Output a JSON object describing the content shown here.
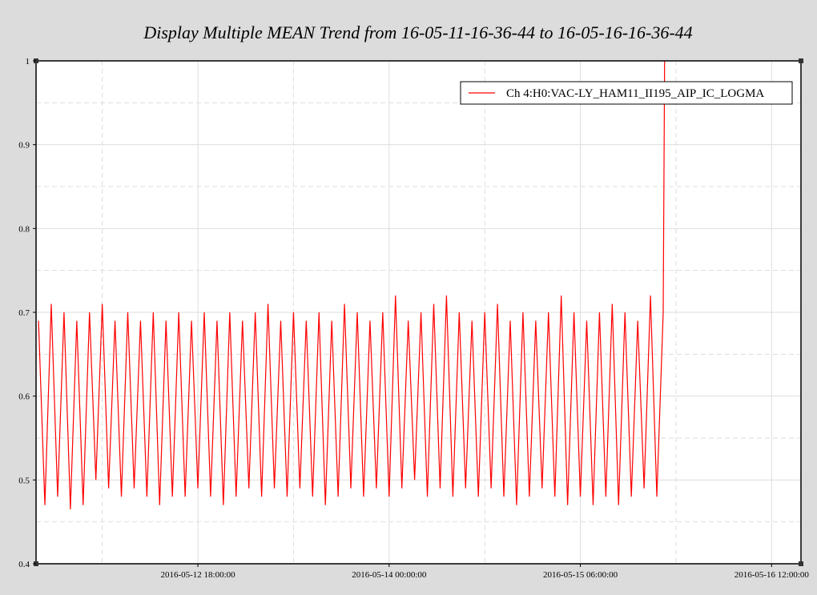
{
  "chart_data": {
    "type": "line",
    "title": "Display Multiple MEAN Trend from 16-05-11-16-36-44 to 16-05-16-16-36-44",
    "xlim": [
      "2016-05-11 16:36:44",
      "2016-05-16 16:36:44"
    ],
    "xticks": [
      "2016-05-12 18:00:00",
      "2016-05-14 00:00:00",
      "2016-05-15 06:00:00",
      "2016-05-16 12:00:00"
    ],
    "ylim": [
      0.4,
      1
    ],
    "yticks": [
      0.4,
      0.5,
      0.6,
      0.7,
      0.8,
      0.9,
      1
    ],
    "grid": true,
    "legend": "upper right",
    "series": [
      {
        "name": "Ch 4:H0:VAC-LY_HAM11_II195_AIP_IC_LOGMA",
        "color": "#ff0000",
        "x": [
          "2016-05-11 17:00:00",
          "2016-05-11 18:00:00",
          "2016-05-11 19:00:00",
          "2016-05-11 20:00:00",
          "2016-05-11 21:00:00",
          "2016-05-11 22:00:00",
          "2016-05-11 23:00:00",
          "2016-05-12 00:00:00",
          "2016-05-12 01:00:00",
          "2016-05-12 02:00:00",
          "2016-05-12 03:00:00",
          "2016-05-12 04:00:00",
          "2016-05-12 05:00:00",
          "2016-05-12 06:00:00",
          "2016-05-12 07:00:00",
          "2016-05-12 08:00:00",
          "2016-05-12 09:00:00",
          "2016-05-12 10:00:00",
          "2016-05-12 11:00:00",
          "2016-05-12 12:00:00",
          "2016-05-12 13:00:00",
          "2016-05-12 14:00:00",
          "2016-05-12 15:00:00",
          "2016-05-12 16:00:00",
          "2016-05-12 17:00:00",
          "2016-05-12 18:00:00",
          "2016-05-12 19:00:00",
          "2016-05-12 20:00:00",
          "2016-05-12 21:00:00",
          "2016-05-12 22:00:00",
          "2016-05-12 23:00:00",
          "2016-05-13 00:00:00",
          "2016-05-13 01:00:00",
          "2016-05-13 02:00:00",
          "2016-05-13 03:00:00",
          "2016-05-13 04:00:00",
          "2016-05-13 05:00:00",
          "2016-05-13 06:00:00",
          "2016-05-13 07:00:00",
          "2016-05-13 08:00:00",
          "2016-05-13 09:00:00",
          "2016-05-13 10:00:00",
          "2016-05-13 11:00:00",
          "2016-05-13 12:00:00",
          "2016-05-13 13:00:00",
          "2016-05-13 14:00:00",
          "2016-05-13 15:00:00",
          "2016-05-13 16:00:00",
          "2016-05-13 17:00:00",
          "2016-05-13 18:00:00",
          "2016-05-13 19:00:00",
          "2016-05-13 20:00:00",
          "2016-05-13 21:00:00",
          "2016-05-13 22:00:00",
          "2016-05-13 23:00:00",
          "2016-05-14 00:00:00",
          "2016-05-14 01:00:00",
          "2016-05-14 02:00:00",
          "2016-05-14 03:00:00",
          "2016-05-14 04:00:00",
          "2016-05-14 05:00:00",
          "2016-05-14 06:00:00",
          "2016-05-14 07:00:00",
          "2016-05-14 08:00:00",
          "2016-05-14 09:00:00",
          "2016-05-14 10:00:00",
          "2016-05-14 11:00:00",
          "2016-05-14 12:00:00",
          "2016-05-14 13:00:00",
          "2016-05-14 14:00:00",
          "2016-05-14 15:00:00",
          "2016-05-14 16:00:00",
          "2016-05-14 17:00:00",
          "2016-05-14 18:00:00",
          "2016-05-14 19:00:00",
          "2016-05-14 20:00:00",
          "2016-05-14 21:00:00",
          "2016-05-14 22:00:00",
          "2016-05-14 23:00:00",
          "2016-05-15 00:00:00",
          "2016-05-15 01:00:00",
          "2016-05-15 02:00:00",
          "2016-05-15 03:00:00",
          "2016-05-15 04:00:00",
          "2016-05-15 05:00:00",
          "2016-05-15 06:00:00",
          "2016-05-15 07:00:00",
          "2016-05-15 08:00:00",
          "2016-05-15 09:00:00",
          "2016-05-15 10:00:00",
          "2016-05-15 11:00:00",
          "2016-05-15 12:00:00",
          "2016-05-15 13:00:00",
          "2016-05-15 14:00:00",
          "2016-05-15 15:00:00",
          "2016-05-15 16:00:00",
          "2016-05-15 17:00:00",
          "2016-05-15 18:00:00",
          "2016-05-15 19:00:00",
          "2016-05-15 19:13:00"
        ],
        "values": [
          0.69,
          0.47,
          0.71,
          0.48,
          0.7,
          0.465,
          0.69,
          0.47,
          0.7,
          0.5,
          0.71,
          0.49,
          0.69,
          0.48,
          0.7,
          0.49,
          0.69,
          0.48,
          0.7,
          0.47,
          0.69,
          0.48,
          0.7,
          0.48,
          0.69,
          0.49,
          0.7,
          0.48,
          0.69,
          0.47,
          0.7,
          0.48,
          0.69,
          0.49,
          0.7,
          0.48,
          0.71,
          0.49,
          0.69,
          0.48,
          0.7,
          0.49,
          0.69,
          0.48,
          0.7,
          0.47,
          0.69,
          0.48,
          0.71,
          0.49,
          0.7,
          0.48,
          0.69,
          0.49,
          0.7,
          0.48,
          0.72,
          0.49,
          0.69,
          0.5,
          0.7,
          0.48,
          0.71,
          0.49,
          0.72,
          0.48,
          0.7,
          0.49,
          0.69,
          0.48,
          0.7,
          0.49,
          0.71,
          0.48,
          0.69,
          0.47,
          0.7,
          0.48,
          0.69,
          0.49,
          0.7,
          0.48,
          0.72,
          0.47,
          0.7,
          0.48,
          0.69,
          0.47,
          0.7,
          0.48,
          0.71,
          0.47,
          0.7,
          0.48,
          0.69,
          0.49,
          0.72,
          0.48,
          0.7,
          1
        ]
      }
    ]
  }
}
